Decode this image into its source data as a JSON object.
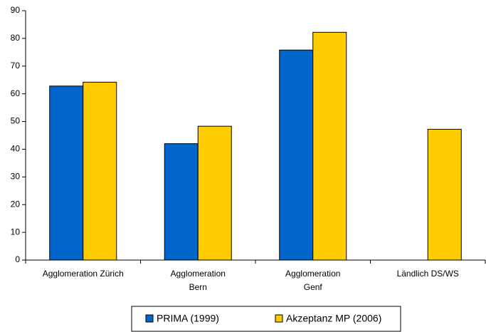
{
  "chart_data": {
    "type": "bar",
    "categories": [
      [
        "Agglomeration Zürich"
      ],
      [
        "Agglomeration",
        "Bern"
      ],
      [
        "Agglomeration",
        "Genf"
      ],
      [
        "Ländlich DS/WS"
      ]
    ],
    "series": [
      {
        "name": "PRIMA (1999)",
        "color": "#0066cc",
        "values": [
          62.8,
          42,
          75.8,
          null
        ]
      },
      {
        "name": "Akzeptanz MP (2006)",
        "color": "#ffcc00",
        "values": [
          64.2,
          48.3,
          82.2,
          47.2
        ]
      }
    ],
    "ylim": [
      0,
      90
    ],
    "yticks": [
      0,
      10,
      20,
      30,
      40,
      50,
      60,
      70,
      80,
      90
    ],
    "grid": false,
    "legend": "bottom"
  }
}
